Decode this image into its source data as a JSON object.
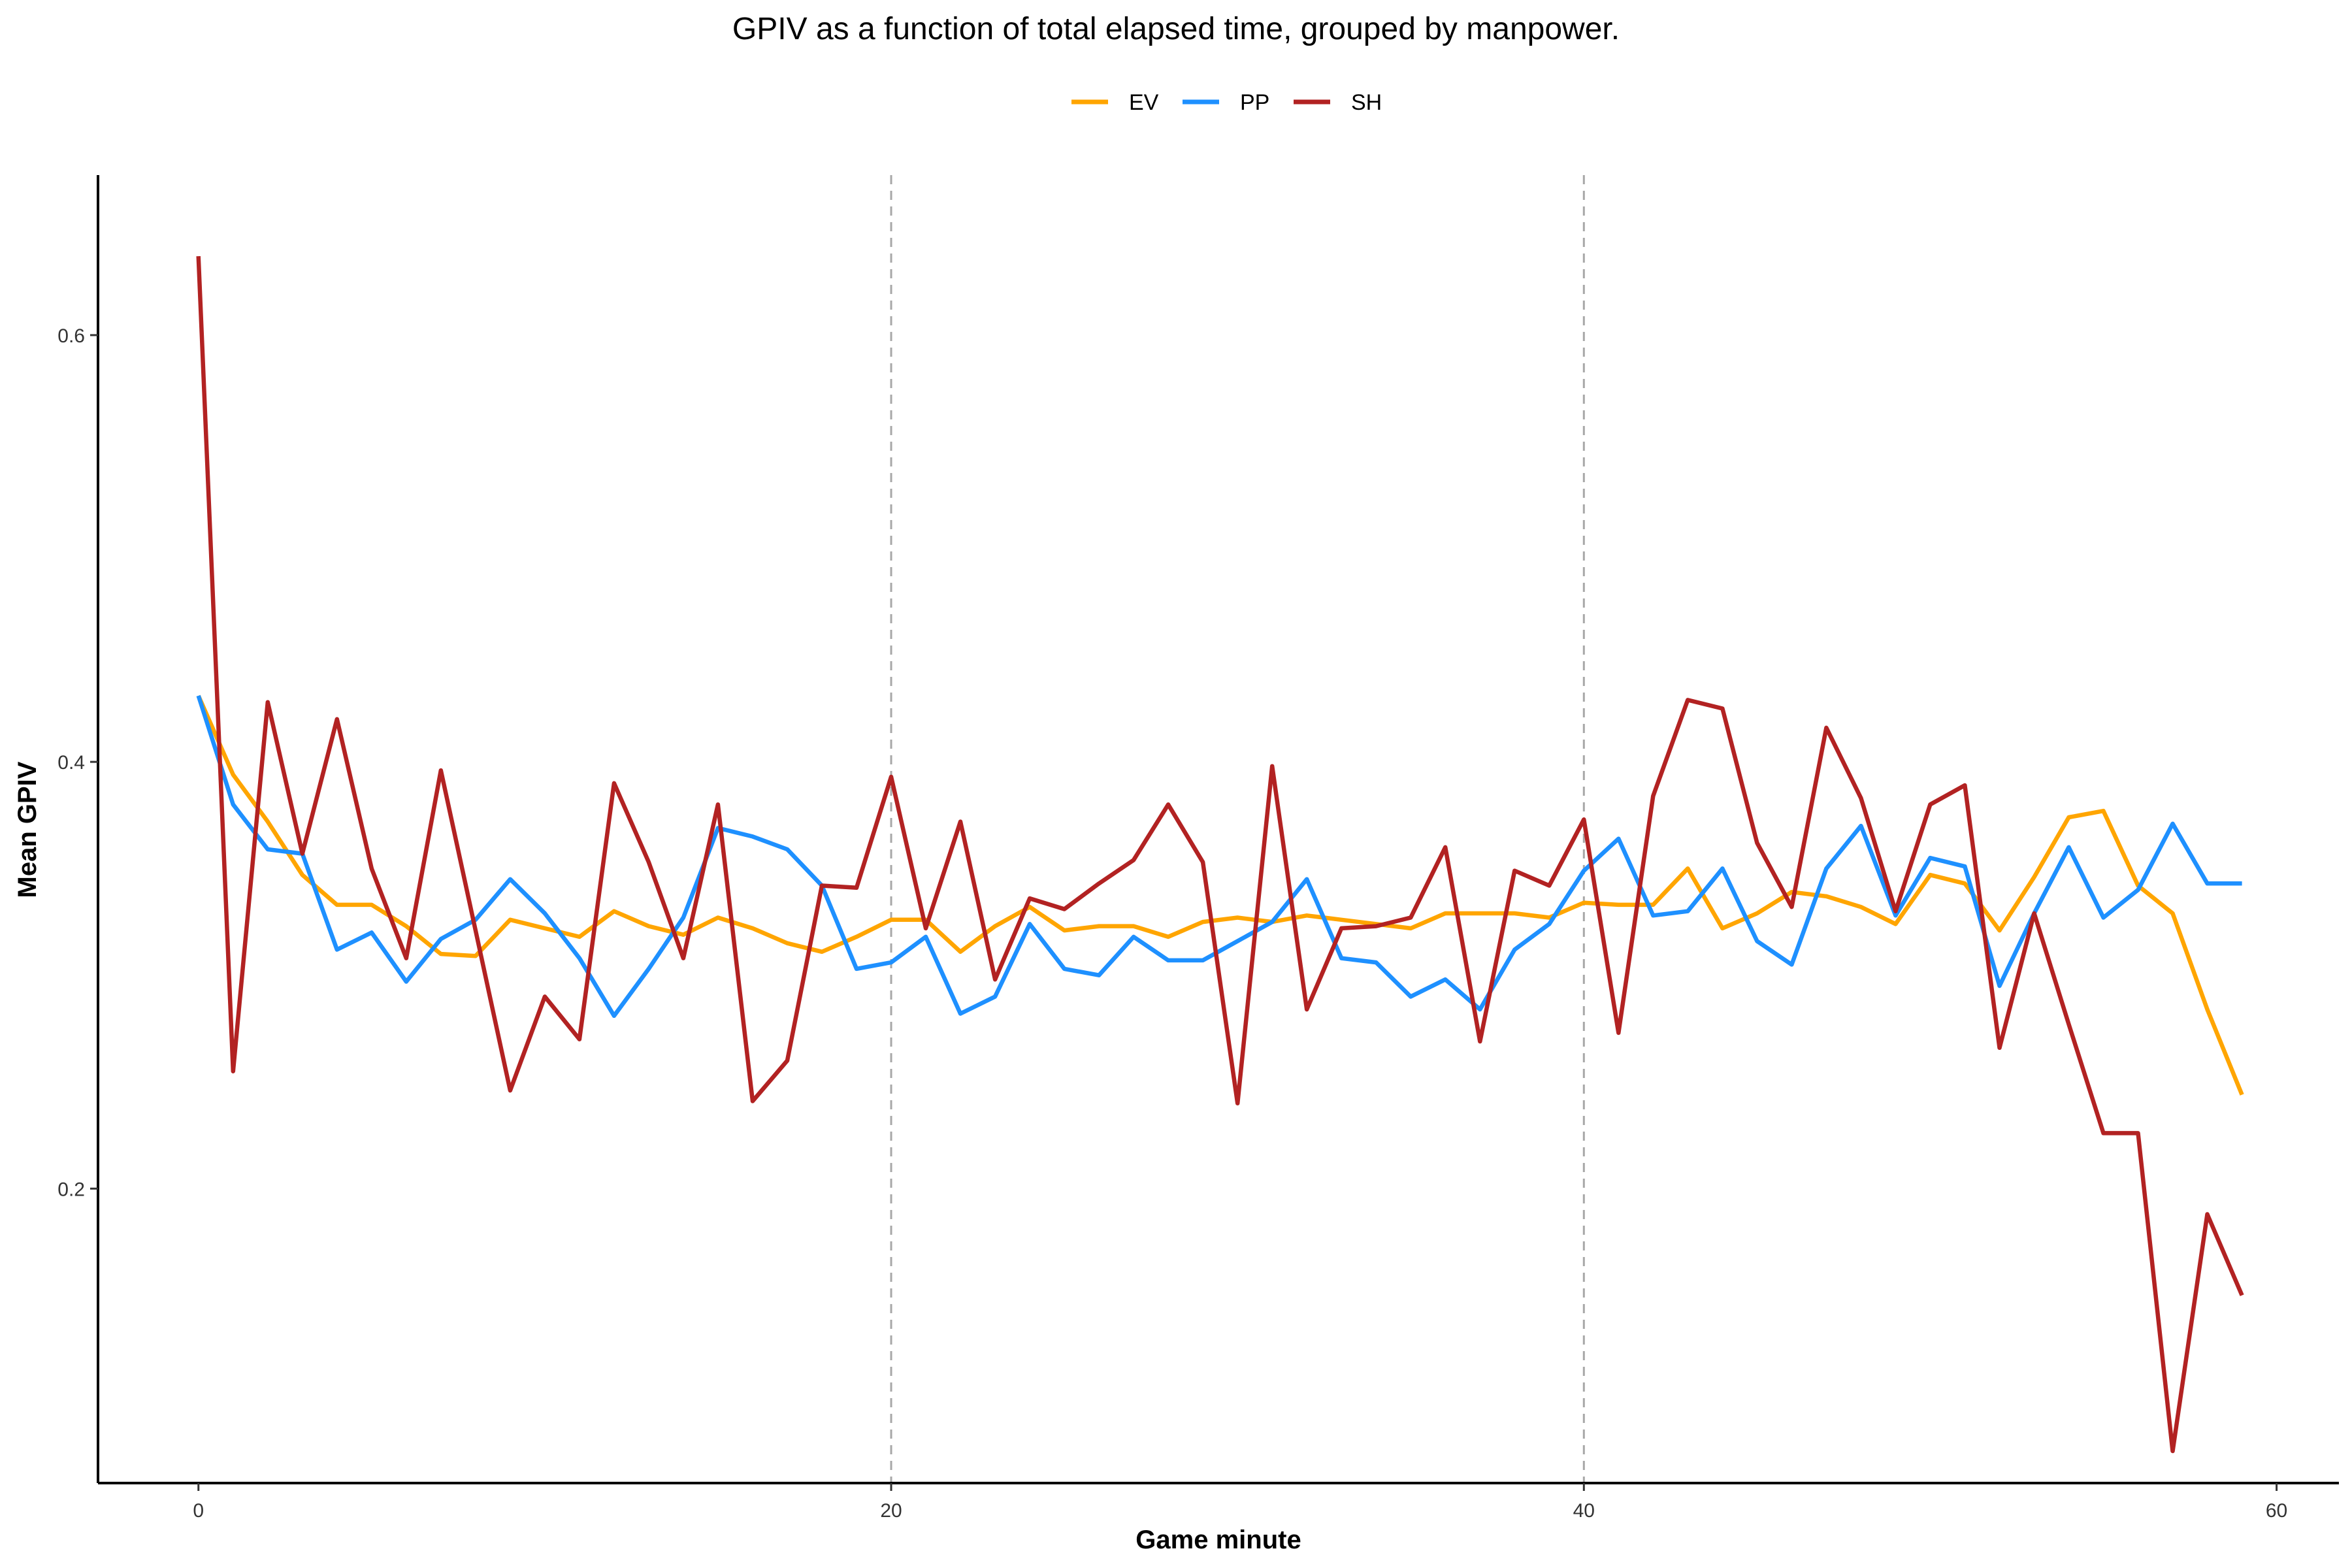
{
  "chart_data": {
    "type": "line",
    "title": "GPIV as a function of total elapsed time, grouped by manpower.",
    "xlabel": "Game minute",
    "ylabel": "Mean GPIV",
    "xlim": [
      -2.9,
      61.8
    ],
    "ylim": [
      0.062,
      0.675
    ],
    "x_ticks": [
      0,
      20,
      40,
      60
    ],
    "y_ticks": [
      0.2,
      0.4,
      0.6
    ],
    "x_tick_labels": [
      "0",
      "20",
      "40",
      "60"
    ],
    "y_tick_labels": [
      "0.2",
      "0.4",
      "0.6"
    ],
    "vlines": [
      20,
      40
    ],
    "grid": false,
    "legend_position": "top",
    "x": [
      0,
      1,
      2,
      3,
      4,
      5,
      6,
      7,
      8,
      9,
      10,
      11,
      12,
      13,
      14,
      15,
      16,
      17,
      18,
      19,
      20,
      21,
      22,
      23,
      24,
      25,
      26,
      27,
      28,
      29,
      30,
      31,
      32,
      33,
      34,
      35,
      36,
      37,
      38,
      39,
      40,
      41,
      42,
      43,
      44,
      45,
      46,
      47,
      48,
      49,
      50,
      51,
      52,
      53,
      54,
      55,
      56,
      57,
      58,
      59
    ],
    "series": [
      {
        "name": "EV",
        "color": "#FFA500",
        "values": [
          0.431,
          0.394,
          0.372,
          0.347,
          0.333,
          0.333,
          0.323,
          0.31,
          0.309,
          0.326,
          0.322,
          0.318,
          0.33,
          0.323,
          0.319,
          0.327,
          0.322,
          0.315,
          0.311,
          0.318,
          0.326,
          0.326,
          0.311,
          0.323,
          0.332,
          0.321,
          0.323,
          0.323,
          0.318,
          0.325,
          0.327,
          0.325,
          0.328,
          0.326,
          0.324,
          0.322,
          0.329,
          0.329,
          0.329,
          0.327,
          0.334,
          0.333,
          0.333,
          0.35,
          0.322,
          0.329,
          0.339,
          0.337,
          0.332,
          0.324,
          0.347,
          0.343,
          0.321,
          0.346,
          0.374,
          0.377,
          0.342,
          0.329,
          0.284,
          0.244
        ]
      },
      {
        "name": "PP",
        "color": "#1E90FF",
        "values": [
          0.431,
          0.38,
          0.359,
          0.357,
          0.312,
          0.32,
          0.297,
          0.317,
          0.326,
          0.345,
          0.329,
          0.308,
          0.281,
          0.303,
          0.327,
          0.369,
          0.365,
          0.359,
          0.342,
          0.303,
          0.306,
          0.318,
          0.282,
          0.29,
          0.324,
          0.303,
          0.3,
          0.318,
          0.307,
          0.307,
          0.316,
          0.325,
          0.345,
          0.308,
          0.306,
          0.29,
          0.298,
          0.284,
          0.312,
          0.324,
          0.349,
          0.364,
          0.328,
          0.33,
          0.35,
          0.316,
          0.305,
          0.35,
          0.37,
          0.328,
          0.355,
          0.351,
          0.295,
          0.329,
          0.36,
          0.327,
          0.34,
          0.371,
          0.343,
          0.343
        ]
      },
      {
        "name": "SH",
        "color": "#B22222",
        "values": [
          0.637,
          0.255,
          0.428,
          0.357,
          0.42,
          0.35,
          0.308,
          0.396,
          0.321,
          0.246,
          0.29,
          0.27,
          0.39,
          0.353,
          0.308,
          0.38,
          0.241,
          0.26,
          0.342,
          0.341,
          0.393,
          0.322,
          0.372,
          0.298,
          0.336,
          0.331,
          0.343,
          0.354,
          0.38,
          0.353,
          0.24,
          0.398,
          0.284,
          0.322,
          0.323,
          0.327,
          0.36,
          0.269,
          0.349,
          0.342,
          0.373,
          0.273,
          0.384,
          0.429,
          0.425,
          0.362,
          0.332,
          0.416,
          0.383,
          0.33,
          0.38,
          0.389,
          0.266,
          0.329,
          0.277,
          0.226,
          0.226,
          0.077,
          0.188,
          0.15
        ]
      }
    ]
  }
}
